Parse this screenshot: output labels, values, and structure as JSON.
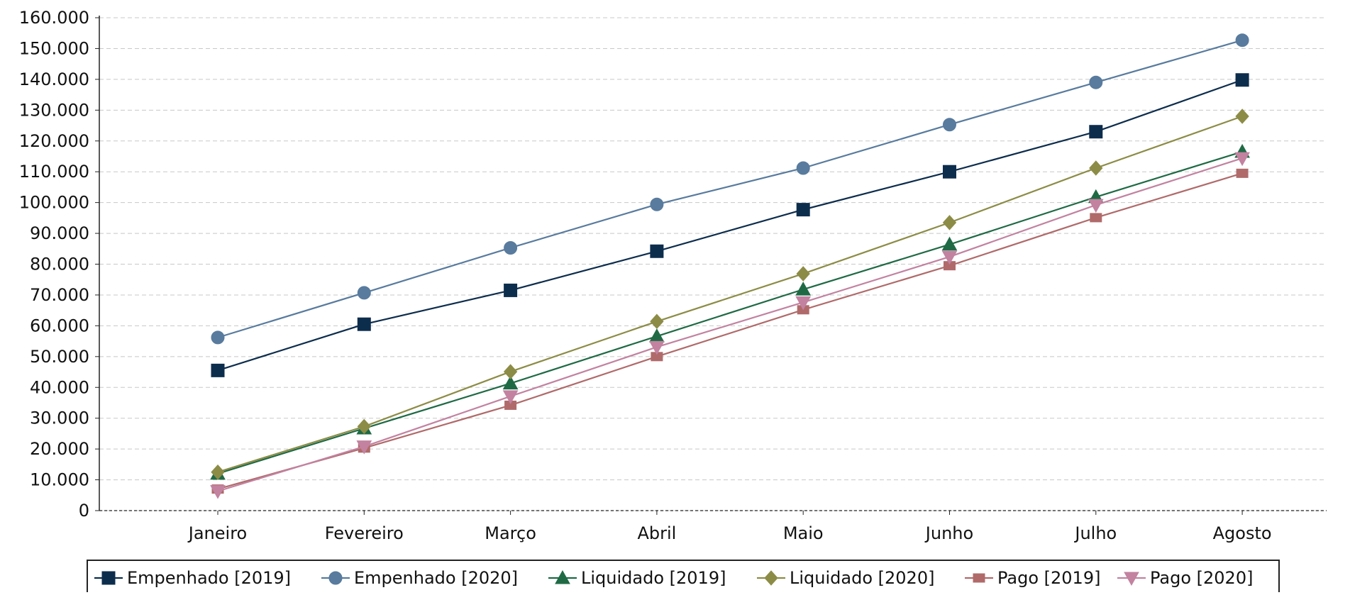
{
  "chart_data": {
    "type": "line",
    "title": "",
    "xlabel": "",
    "ylabel": "",
    "categories": [
      "Janeiro",
      "Fevereiro",
      "Março",
      "Abril",
      "Maio",
      "Junho",
      "Julho",
      "Agosto"
    ],
    "ylim": [
      0,
      160000
    ],
    "yticks": [
      0,
      10000,
      20000,
      30000,
      40000,
      50000,
      60000,
      70000,
      80000,
      90000,
      100000,
      110000,
      120000,
      130000,
      140000,
      150000,
      160000
    ],
    "ytick_labels": [
      "0",
      "10.000",
      "20.000",
      "30.000",
      "40.000",
      "50.000",
      "60.000",
      "70.000",
      "80.000",
      "90.000",
      "100.000",
      "110.000",
      "120.000",
      "130.000",
      "140.000",
      "150.000",
      "160.000"
    ],
    "grid": "horizontal dashed",
    "legend_position": "bottom",
    "series": [
      {
        "name": "Empenhado [2019]",
        "color": "#0d2d4d",
        "marker": "square",
        "values": [
          45500,
          60500,
          71500,
          84200,
          97700,
          110000,
          123000,
          139800
        ]
      },
      {
        "name": "Empenhado [2020]",
        "color": "#587b9e",
        "marker": "circle",
        "values": [
          56200,
          70700,
          85300,
          99400,
          111200,
          125300,
          139000,
          152700
        ]
      },
      {
        "name": "Liquidado [2019]",
        "color": "#1f6a45",
        "marker": "triangle-up",
        "values": [
          12000,
          26700,
          41300,
          56600,
          71800,
          86400,
          101800,
          116500
        ]
      },
      {
        "name": "Liquidado [2020]",
        "color": "#8c8c46",
        "marker": "diamond",
        "values": [
          12500,
          27300,
          45100,
          61400,
          76900,
          93500,
          111200,
          128000
        ]
      },
      {
        "name": "Pago [2019]",
        "color": "#b06a6a",
        "marker": "square-small",
        "values": [
          7000,
          20300,
          34200,
          50000,
          65200,
          79500,
          95100,
          109500
        ]
      },
      {
        "name": "Pago [2020]",
        "color": "#c282a0",
        "marker": "triangle-down",
        "values": [
          6300,
          20800,
          37100,
          53100,
          67600,
          82400,
          99200,
          114400
        ]
      }
    ]
  }
}
